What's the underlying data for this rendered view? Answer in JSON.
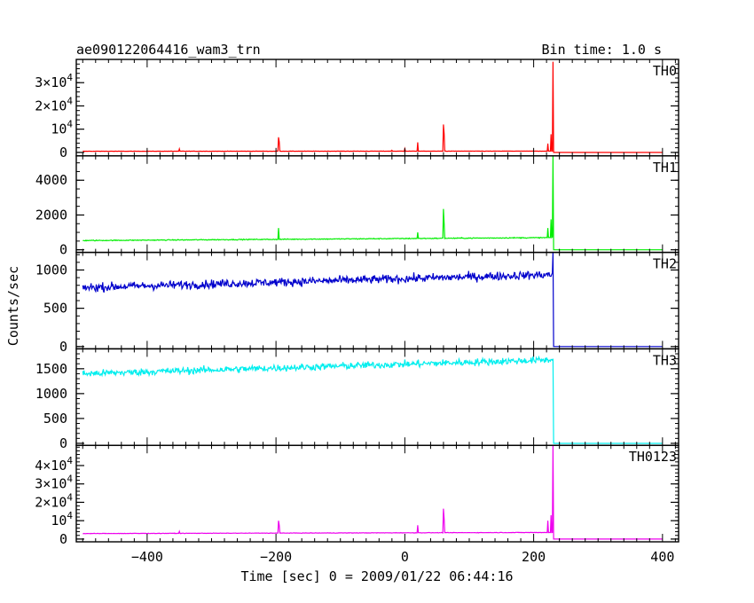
{
  "chart_data": {
    "type": "line",
    "title_left": "ae090122064416_wam3_trn",
    "title_right": "Bin time: 1.0 s",
    "xlabel": "Time [sec] 0 = 2009/01/22 06:44:16",
    "ylabel": "Counts/sec",
    "xlim": [
      -510,
      425
    ],
    "x_ticks": [
      -400,
      -200,
      0,
      200,
      400
    ],
    "x_tick_labels": [
      "−400",
      "−200",
      "0",
      "200",
      "400"
    ],
    "panels": [
      {
        "name": "TH0",
        "color": "#ff0000",
        "ylim": [
          -1500,
          40000
        ],
        "tick_labels": [
          {
            "value": 0,
            "mant": "0",
            "exp": ""
          },
          {
            "value": 10000,
            "mant": "10",
            "exp": "4"
          },
          {
            "value": 20000,
            "mant": "2×10",
            "exp": "4"
          },
          {
            "value": 30000,
            "mant": "3×10",
            "exp": "4"
          }
        ],
        "minor_step": 2000,
        "baseline": [
          [
            -500,
            500
          ],
          [
            230,
            550
          ]
        ],
        "noise": 60,
        "peak": 39000,
        "drop_to": 0,
        "spikes": [
          [
            -350,
            1500
          ],
          [
            -196,
            6500
          ],
          [
            -195,
            4500
          ],
          [
            -20,
            900
          ],
          [
            0,
            1600
          ],
          [
            20,
            4300
          ],
          [
            60,
            12000
          ],
          [
            61,
            8000
          ],
          [
            222,
            3800
          ],
          [
            227,
            7800
          ]
        ]
      },
      {
        "name": "TH1",
        "color": "#00ee00",
        "ylim": [
          -150,
          5400
        ],
        "tick_labels": [
          {
            "value": 0,
            "mant": "0",
            "exp": ""
          },
          {
            "value": 2000,
            "mant": "2000",
            "exp": ""
          },
          {
            "value": 4000,
            "mant": "4000",
            "exp": ""
          }
        ],
        "minor_step": 500,
        "baseline": [
          [
            -500,
            530
          ],
          [
            230,
            700
          ]
        ],
        "noise": 25,
        "peak": 5400,
        "drop_to": 0,
        "spikes": [
          [
            -196,
            1250
          ],
          [
            20,
            1000
          ],
          [
            60,
            2350
          ],
          [
            61,
            1500
          ],
          [
            222,
            1250
          ],
          [
            227,
            1750
          ]
        ]
      },
      {
        "name": "TH2",
        "color": "#0000cc",
        "ylim": [
          -30,
          1230
        ],
        "tick_labels": [
          {
            "value": 0,
            "mant": "0",
            "exp": ""
          },
          {
            "value": 500,
            "mant": "500",
            "exp": ""
          },
          {
            "value": 1000,
            "mant": "1000",
            "exp": ""
          }
        ],
        "minor_step": 100,
        "baseline": [
          [
            -500,
            770
          ],
          [
            230,
            940
          ]
        ],
        "noise": 55,
        "peak": 1230,
        "drop_to": 0,
        "spikes": []
      },
      {
        "name": "TH3",
        "color": "#00eeee",
        "ylim": [
          -40,
          1900
        ],
        "tick_labels": [
          {
            "value": 0,
            "mant": "0",
            "exp": ""
          },
          {
            "value": 500,
            "mant": "500",
            "exp": ""
          },
          {
            "value": 1000,
            "mant": "1000",
            "exp": ""
          },
          {
            "value": 1500,
            "mant": "1500",
            "exp": ""
          }
        ],
        "minor_step": 100,
        "baseline": [
          [
            -500,
            1400
          ],
          [
            230,
            1680
          ]
        ],
        "noise": 70,
        "peak": 1700,
        "drop_to": 0,
        "spikes": []
      },
      {
        "name": "TH0123",
        "color": "#ee00ee",
        "ylim": [
          -1500,
          51000
        ],
        "tick_labels": [
          {
            "value": 0,
            "mant": "0",
            "exp": ""
          },
          {
            "value": 10000,
            "mant": "10",
            "exp": "4"
          },
          {
            "value": 20000,
            "mant": "2×10",
            "exp": "4"
          },
          {
            "value": 30000,
            "mant": "3×10",
            "exp": "4"
          },
          {
            "value": 40000,
            "mant": "4×10",
            "exp": "4"
          }
        ],
        "minor_step": 2000,
        "baseline": [
          [
            -500,
            3000
          ],
          [
            230,
            3600
          ]
        ],
        "noise": 120,
        "peak": 51000,
        "drop_to": 0,
        "spikes": [
          [
            -350,
            4200
          ],
          [
            -196,
            10000
          ],
          [
            -195,
            7500
          ],
          [
            20,
            7500
          ],
          [
            60,
            16500
          ],
          [
            61,
            11000
          ],
          [
            222,
            10000
          ],
          [
            227,
            13000
          ]
        ]
      }
    ]
  }
}
